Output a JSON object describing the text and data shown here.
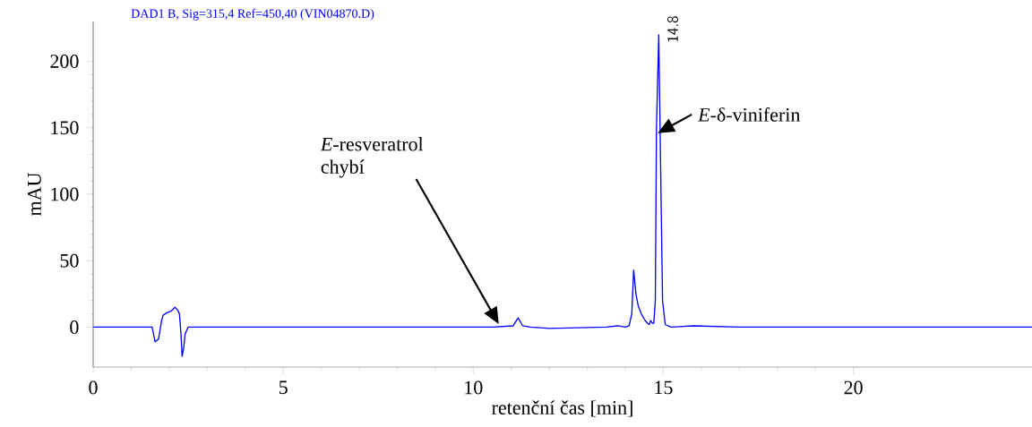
{
  "chart_data": {
    "type": "line",
    "title": "DAD1 B, Sig=315,4 Ref=450,40 (VIN04870.D)",
    "xlabel": "retenční čas [min]",
    "ylabel": "mAU",
    "color": "#0000ff",
    "x": [
      0,
      1.55,
      1.63,
      1.72,
      1.8,
      1.84,
      1.95,
      2.05,
      2.15,
      2.22,
      2.27,
      2.31,
      2.34,
      2.38,
      2.42,
      2.5,
      5,
      7,
      9,
      10.5,
      11.05,
      11.18,
      11.3,
      11.5,
      12,
      13.5,
      13.8,
      14.0,
      14.1,
      14.17,
      14.22,
      14.28,
      14.34,
      14.42,
      14.5,
      14.58,
      14.63,
      14.67,
      14.71,
      14.75,
      14.79,
      14.82,
      14.88,
      14.93,
      14.98,
      15.05,
      15.2,
      15.8,
      17,
      20,
      24.7
    ],
    "values": [
      0,
      0,
      -11,
      -9,
      5,
      9,
      11,
      12,
      15,
      13,
      10,
      -5,
      -22,
      -16,
      -5,
      0,
      0,
      0,
      0,
      0,
      1,
      7,
      1,
      0,
      -1,
      0,
      1,
      0,
      1,
      10,
      43,
      25,
      16,
      10,
      6,
      3,
      2,
      5,
      3,
      3,
      20,
      150,
      220,
      120,
      20,
      2,
      0,
      1,
      0,
      0,
      0
    ],
    "xlim": [
      0,
      24.7
    ],
    "ylim": [
      -30,
      230
    ],
    "xticks": [
      0,
      5,
      10,
      15,
      20
    ],
    "yticks": [
      0,
      50,
      100,
      150,
      200
    ],
    "grid": false,
    "marker": "none",
    "line_style": "solid",
    "annotations": [
      "*E*-resveratrol chybí",
      {
        "text": "*E*-δ-viniferin",
        "x": 14.85,
        "y": 146
      },
      {
        "text": "14.8",
        "x": 14.88,
        "y": 213
      }
    ]
  }
}
